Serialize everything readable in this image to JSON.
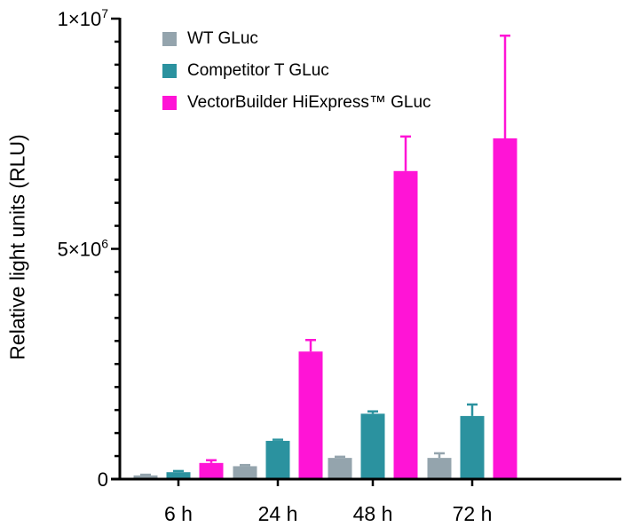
{
  "chart_data": {
    "type": "bar",
    "title": "",
    "xlabel": "",
    "ylabel": "Relative light units (RLU)",
    "ylim": [
      0,
      10000000
    ],
    "yticks": [
      {
        "value": 0,
        "label": "0"
      },
      {
        "value": 5000000,
        "label": "5×10^6"
      },
      {
        "value": 10000000,
        "label": "1×10^7"
      }
    ],
    "ytick_labels_display": [
      "0",
      "5×10⁶",
      "1×10⁷"
    ],
    "minor_tick_step": 500000,
    "grid": false,
    "legend_position": "top-left (inside)",
    "categories": [
      "6 h",
      "24 h",
      "48 h",
      "72 h"
    ],
    "series": [
      {
        "name": "WT GLuc",
        "color": "#94a4ad",
        "values": [
          80000,
          280000,
          460000,
          460000
        ],
        "errors": [
          10000,
          20000,
          20000,
          100000
        ]
      },
      {
        "name": "Competitor T GLuc",
        "color": "#2b929f",
        "values": [
          150000,
          830000,
          1420000,
          1370000
        ],
        "errors": [
          20000,
          20000,
          50000,
          250000
        ]
      },
      {
        "name": "VectorBuilder HiExpress™ GLuc",
        "color": "#ff14d6",
        "values": [
          350000,
          2770000,
          6690000,
          7400000
        ],
        "errors": [
          60000,
          250000,
          750000,
          2230000
        ]
      }
    ]
  },
  "legend": {
    "items": [
      {
        "label": "WT GLuc",
        "color": "#94a4ad"
      },
      {
        "label": "Competitor T GLuc",
        "color": "#2b929f"
      },
      {
        "label": "VectorBuilder HiExpress™ GLuc",
        "color": "#ff14d6"
      }
    ]
  },
  "axis": {
    "y_title": "Relative light units (RLU)"
  }
}
